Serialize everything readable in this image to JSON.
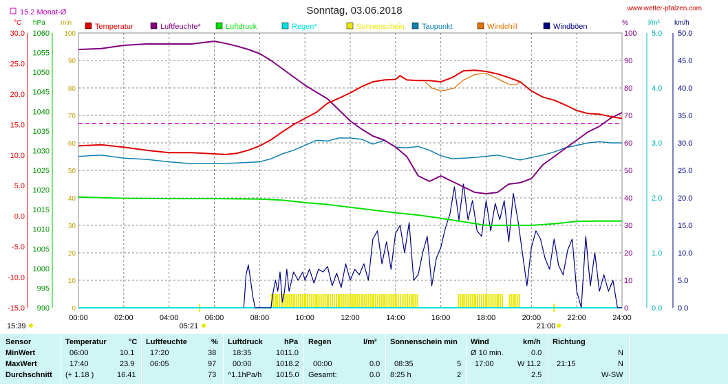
{
  "header": {
    "title": "Sonntag, 03.06.2018",
    "site": "www.wetter-pfalzen.com",
    "monthly_avg": "15.2 Monat-Ø",
    "units_left": [
      "°C",
      "hPa",
      "min"
    ],
    "units_right": [
      "%",
      "l/m²",
      "km/h"
    ]
  },
  "legend": [
    {
      "label": "Temperatur",
      "color": "#e00000"
    },
    {
      "label": "Luftfeuchte*",
      "color": "#800080"
    },
    {
      "label": "Luftdruck",
      "color": "#00e000"
    },
    {
      "label": "Regen*",
      "color": "#00e0e0"
    },
    {
      "label": "Sonnenschein",
      "color": "#e8e800"
    },
    {
      "label": "Taupunkt",
      "color": "#1080b0"
    },
    {
      "label": "Windchill",
      "color": "#e07000"
    },
    {
      "label": "Windböen",
      "color": "#000080"
    }
  ],
  "axes": {
    "temp_ticks": [
      "30.0",
      "25.0",
      "20.0",
      "15.0",
      "10.0",
      "5.0",
      "0.0",
      "-5.0",
      "-10.0",
      "-15.0"
    ],
    "pressure_ticks": [
      "1060",
      "1055",
      "1050",
      "1045",
      "1040",
      "1035",
      "1030",
      "1025",
      "1020",
      "1015",
      "1010",
      "1005",
      "1000",
      "995",
      "990"
    ],
    "min_ticks": [
      "100",
      "90",
      "80",
      "70",
      "60",
      "50",
      "40",
      "30",
      "20",
      "10",
      "0"
    ],
    "hum_ticks": [
      "100",
      "90",
      "80",
      "70",
      "60",
      "50",
      "40",
      "30",
      "20",
      "10",
      "0"
    ],
    "rain_ticks": [
      "5.0",
      "4.0",
      "3.0",
      "2.0",
      "1.0",
      "0.0"
    ],
    "wind_ticks": [
      "50.0",
      "45.0",
      "40.0",
      "35.0",
      "30.0",
      "25.0",
      "20.0",
      "15.0",
      "10.0",
      "5.0",
      "0.0"
    ],
    "x_ticks": [
      "00:00",
      "02:00",
      "04:00",
      "06:00",
      "08:00",
      "10:00",
      "12:00",
      "14:00",
      "16:00",
      "18:00",
      "20:00",
      "22:00",
      "24:00"
    ],
    "sunrise": "05:21",
    "sunset": "21:00",
    "left_time": "15:39"
  },
  "chart_data": {
    "type": "line",
    "x_unit": "hour",
    "xlim": [
      0,
      24
    ],
    "monthly_avg_temp": 15.2,
    "series": [
      {
        "name": "Temperatur",
        "axis": "°C",
        "ylim": [
          -15,
          30
        ],
        "x": [
          0,
          1,
          2,
          3,
          4,
          5,
          6,
          6.5,
          7,
          7.5,
          8,
          8.5,
          9,
          9.5,
          10,
          10.5,
          11,
          11.5,
          12,
          12.5,
          13,
          13.5,
          14,
          14.2,
          14.5,
          15,
          15.5,
          16,
          16.5,
          17,
          17.5,
          18,
          18.5,
          19,
          19.5,
          20,
          20.5,
          21,
          21.5,
          22,
          22.5,
          23,
          23.5,
          24
        ],
        "y": [
          11.5,
          11.7,
          11.3,
          10.8,
          10.4,
          10.4,
          10.2,
          10.1,
          10.3,
          10.8,
          11.5,
          12.5,
          13.8,
          15,
          16,
          17,
          18.5,
          19.3,
          20.2,
          21.2,
          22,
          22.3,
          22.4,
          23,
          22.3,
          22.2,
          22.2,
          22,
          22.7,
          23.8,
          23.9,
          23.7,
          23.3,
          22.7,
          22,
          20.5,
          19.5,
          19,
          18.2,
          17.3,
          16.8,
          16.7,
          16.3,
          16
        ]
      },
      {
        "name": "Windchill",
        "axis": "°C",
        "ylim": [
          -15,
          30
        ],
        "x": [
          15.3,
          15.6,
          16,
          16.3,
          16.6,
          17,
          17.5,
          18,
          18.5,
          19,
          19.3,
          19.5
        ],
        "y": [
          22,
          21,
          20.5,
          20.7,
          21,
          22.3,
          23.2,
          23.4,
          22.5,
          21.6,
          21.5,
          22
        ]
      },
      {
        "name": "Luftfeuchte*",
        "axis": "%",
        "ylim": [
          0,
          100
        ],
        "x": [
          0,
          1,
          2,
          3,
          4,
          5,
          5.5,
          6,
          6.5,
          7,
          7.5,
          8,
          8.5,
          9,
          9.5,
          10,
          10.5,
          11,
          11.5,
          12,
          12.5,
          13,
          13.5,
          14,
          14.5,
          15,
          15.5,
          16,
          16.5,
          17,
          17.5,
          18,
          18.5,
          19,
          19.5,
          20,
          20.5,
          21,
          21.5,
          22,
          22.5,
          23,
          23.5,
          24
        ],
        "y": [
          94,
          94.3,
          95.5,
          96,
          96,
          96,
          96.5,
          97,
          96.2,
          95.2,
          94,
          92.5,
          90,
          87,
          84,
          81,
          78.5,
          76,
          72,
          68,
          65,
          62.5,
          61,
          58.5,
          55,
          48,
          46,
          48,
          46,
          44,
          42,
          41.5,
          42,
          45,
          45.5,
          47,
          52,
          55,
          58,
          61,
          64,
          66,
          69,
          71
        ]
      },
      {
        "name": "Luftdruck",
        "axis": "hPa",
        "ylim": [
          990,
          1060
        ],
        "x": [
          0,
          2,
          4,
          6,
          8,
          9,
          10,
          11,
          12,
          13,
          14,
          15,
          16,
          17,
          18,
          19,
          20,
          21,
          22,
          23,
          24
        ],
        "y": [
          1018.2,
          1017.9,
          1017.8,
          1017.8,
          1017.7,
          1017.4,
          1016.8,
          1016.3,
          1015.6,
          1014.9,
          1014.2,
          1013.6,
          1012.8,
          1011.9,
          1011,
          1011,
          1011,
          1011.4,
          1012,
          1012.1,
          1012.1
        ]
      },
      {
        "name": "Taupunkt",
        "axis": "°C",
        "ylim": [
          -15,
          30
        ],
        "x": [
          0,
          1,
          2,
          3,
          4,
          5,
          6,
          7,
          8,
          8.5,
          9,
          9.5,
          10,
          10.5,
          11,
          11.5,
          12,
          12.5,
          13,
          13.5,
          14,
          14.5,
          15,
          15.5,
          16,
          16.5,
          17,
          17.5,
          18,
          18.5,
          19,
          19.5,
          20,
          20.5,
          21,
          21.5,
          22,
          22.5,
          23,
          23.5,
          24
        ],
        "y": [
          9.8,
          10,
          9.5,
          9.3,
          8.9,
          8.6,
          8.6,
          8.7,
          8.9,
          9.4,
          10.2,
          10.8,
          11.6,
          12.4,
          12.3,
          12.8,
          12.8,
          12.6,
          11.8,
          12.4,
          11.3,
          11.2,
          11.4,
          10.8,
          9.9,
          9.4,
          9.5,
          9.6,
          9.8,
          10,
          9.6,
          9.2,
          9.6,
          10,
          10.5,
          11.2,
          11.6,
          12,
          12.2,
          12,
          12
        ]
      },
      {
        "name": "Windböen",
        "axis": "km/h",
        "ylim": [
          0,
          50
        ],
        "x": [
          7.3,
          7.4,
          7.5,
          7.6,
          7.7,
          7.8,
          7.9,
          8,
          8.1,
          8.3,
          8.5,
          8.6,
          8.7,
          8.8,
          8.9,
          9,
          9.1,
          9.2,
          9.3,
          9.5,
          9.7,
          9.9,
          10,
          10.2,
          10.4,
          10.6,
          10.8,
          11,
          11.2,
          11.4,
          11.6,
          11.8,
          12,
          12.2,
          12.4,
          12.6,
          12.8,
          13,
          13.2,
          13.4,
          13.6,
          13.8,
          14,
          14.2,
          14.4,
          14.6,
          14.8,
          15,
          15.2,
          15.4,
          15.6,
          15.8,
          16,
          16.2,
          16.4,
          16.6,
          16.8,
          17,
          17.2,
          17.4,
          17.6,
          17.8,
          18,
          18.2,
          18.4,
          18.6,
          18.8,
          19,
          19.2,
          19.4,
          19.6,
          19.8,
          20,
          20.2,
          20.4,
          20.6,
          20.8,
          21,
          21.2,
          21.4,
          21.6,
          21.8,
          22,
          22.2,
          22.4,
          22.6,
          22.8,
          23,
          23.2,
          23.4,
          23.6,
          23.8,
          24
        ],
        "y": [
          0,
          6,
          7.8,
          5,
          2,
          0,
          0,
          0,
          0,
          0,
          0,
          3,
          5,
          3,
          6.5,
          1,
          3,
          7,
          3,
          6.5,
          5,
          6.5,
          5,
          7,
          4.5,
          7,
          6.5,
          7.5,
          4,
          6.3,
          3.7,
          8,
          5,
          7,
          6,
          8,
          5,
          12.5,
          14,
          8,
          12,
          7,
          13.5,
          15,
          10,
          15.5,
          5,
          6,
          10,
          13,
          4,
          9,
          11,
          14.5,
          17,
          22,
          16,
          22.5,
          16,
          19.5,
          14,
          13,
          19.5,
          14,
          19,
          16,
          19.5,
          12,
          20.8,
          16,
          10,
          4,
          11,
          14,
          12.5,
          9,
          7,
          12.5,
          7.7,
          6,
          10.5,
          12.5,
          3,
          0,
          13,
          4,
          10,
          3,
          6,
          3,
          5,
          0,
          0
        ]
      },
      {
        "name": "Sonnenschein",
        "axis": "min",
        "ylim": [
          0,
          100
        ],
        "x": [
          8.5,
          8.75,
          9,
          9.5,
          10,
          10.5,
          11,
          11.5,
          12,
          12.5,
          13,
          13.5,
          14,
          14.2,
          14.3,
          14.5,
          14.75,
          15,
          16.5,
          16.75,
          17,
          17.5,
          18,
          18.5,
          18.75,
          19,
          19.25,
          19.5
        ],
        "y": [
          5,
          5,
          5,
          5,
          5,
          5,
          5,
          5,
          5,
          5,
          5,
          5,
          5,
          0,
          5,
          5,
          5,
          0,
          0,
          5,
          5,
          5,
          5,
          5,
          0,
          5,
          5,
          0
        ]
      },
      {
        "name": "Regen*",
        "axis": "l/m²",
        "ylim": [
          0,
          5
        ],
        "x": [
          0,
          24
        ],
        "y": [
          0,
          0
        ]
      }
    ]
  },
  "table": {
    "headers": [
      {
        "label": "Sensor",
        "unit": ""
      },
      {
        "label": "Temperatur",
        "unit": "°C"
      },
      {
        "label": "Luftfeuchte",
        "unit": "%"
      },
      {
        "label": "Luftdruck",
        "unit": "hPa"
      },
      {
        "label": "Regen",
        "unit": "l/m²"
      },
      {
        "label": "Sonnenschein min",
        "unit": ""
      },
      {
        "label": "Wind",
        "unit": "km/h"
      },
      {
        "label": "Richtung",
        "unit": ""
      }
    ],
    "rows": [
      {
        "label": "MinWert",
        "temp_t": "06:00",
        "temp_v": "10.1",
        "hum_t": "17:20",
        "hum_v": "38",
        "pres_t": "18:35",
        "pres_v": "1011.0",
        "rain_t": "",
        "rain_v": "",
        "sun_t": "",
        "sun_v": "",
        "wind_t": "Ø 10 min.",
        "wind_v": "0.0",
        "dir_t": "",
        "dir_v": "N"
      },
      {
        "label": "MaxWert",
        "temp_t": "17:40",
        "temp_v": "23.9",
        "hum_t": "06:05",
        "hum_v": "97",
        "pres_t": "00:00",
        "pres_v": "1018.2",
        "rain_t": "00:00",
        "rain_v": "0.0",
        "sun_t": "08:35",
        "sun_v": "5",
        "wind_t": "17:00",
        "wind_v": "W 11.2",
        "dir_t": "21:15",
        "dir_v": "N"
      },
      {
        "label": "Durchschnitt",
        "temp_t": "(+ 1.18 )",
        "temp_v": "16.41",
        "hum_t": "",
        "hum_v": "73",
        "pres_t": "^1.1hPa/h",
        "pres_v": "1015.0",
        "rain_t": "Gesamt:",
        "rain_v": "0.0",
        "sun_t": "8:25 h",
        "sun_v": "2",
        "wind_t": "",
        "wind_v": "2.5",
        "dir_t": "",
        "dir_v": "W-SW"
      }
    ]
  }
}
